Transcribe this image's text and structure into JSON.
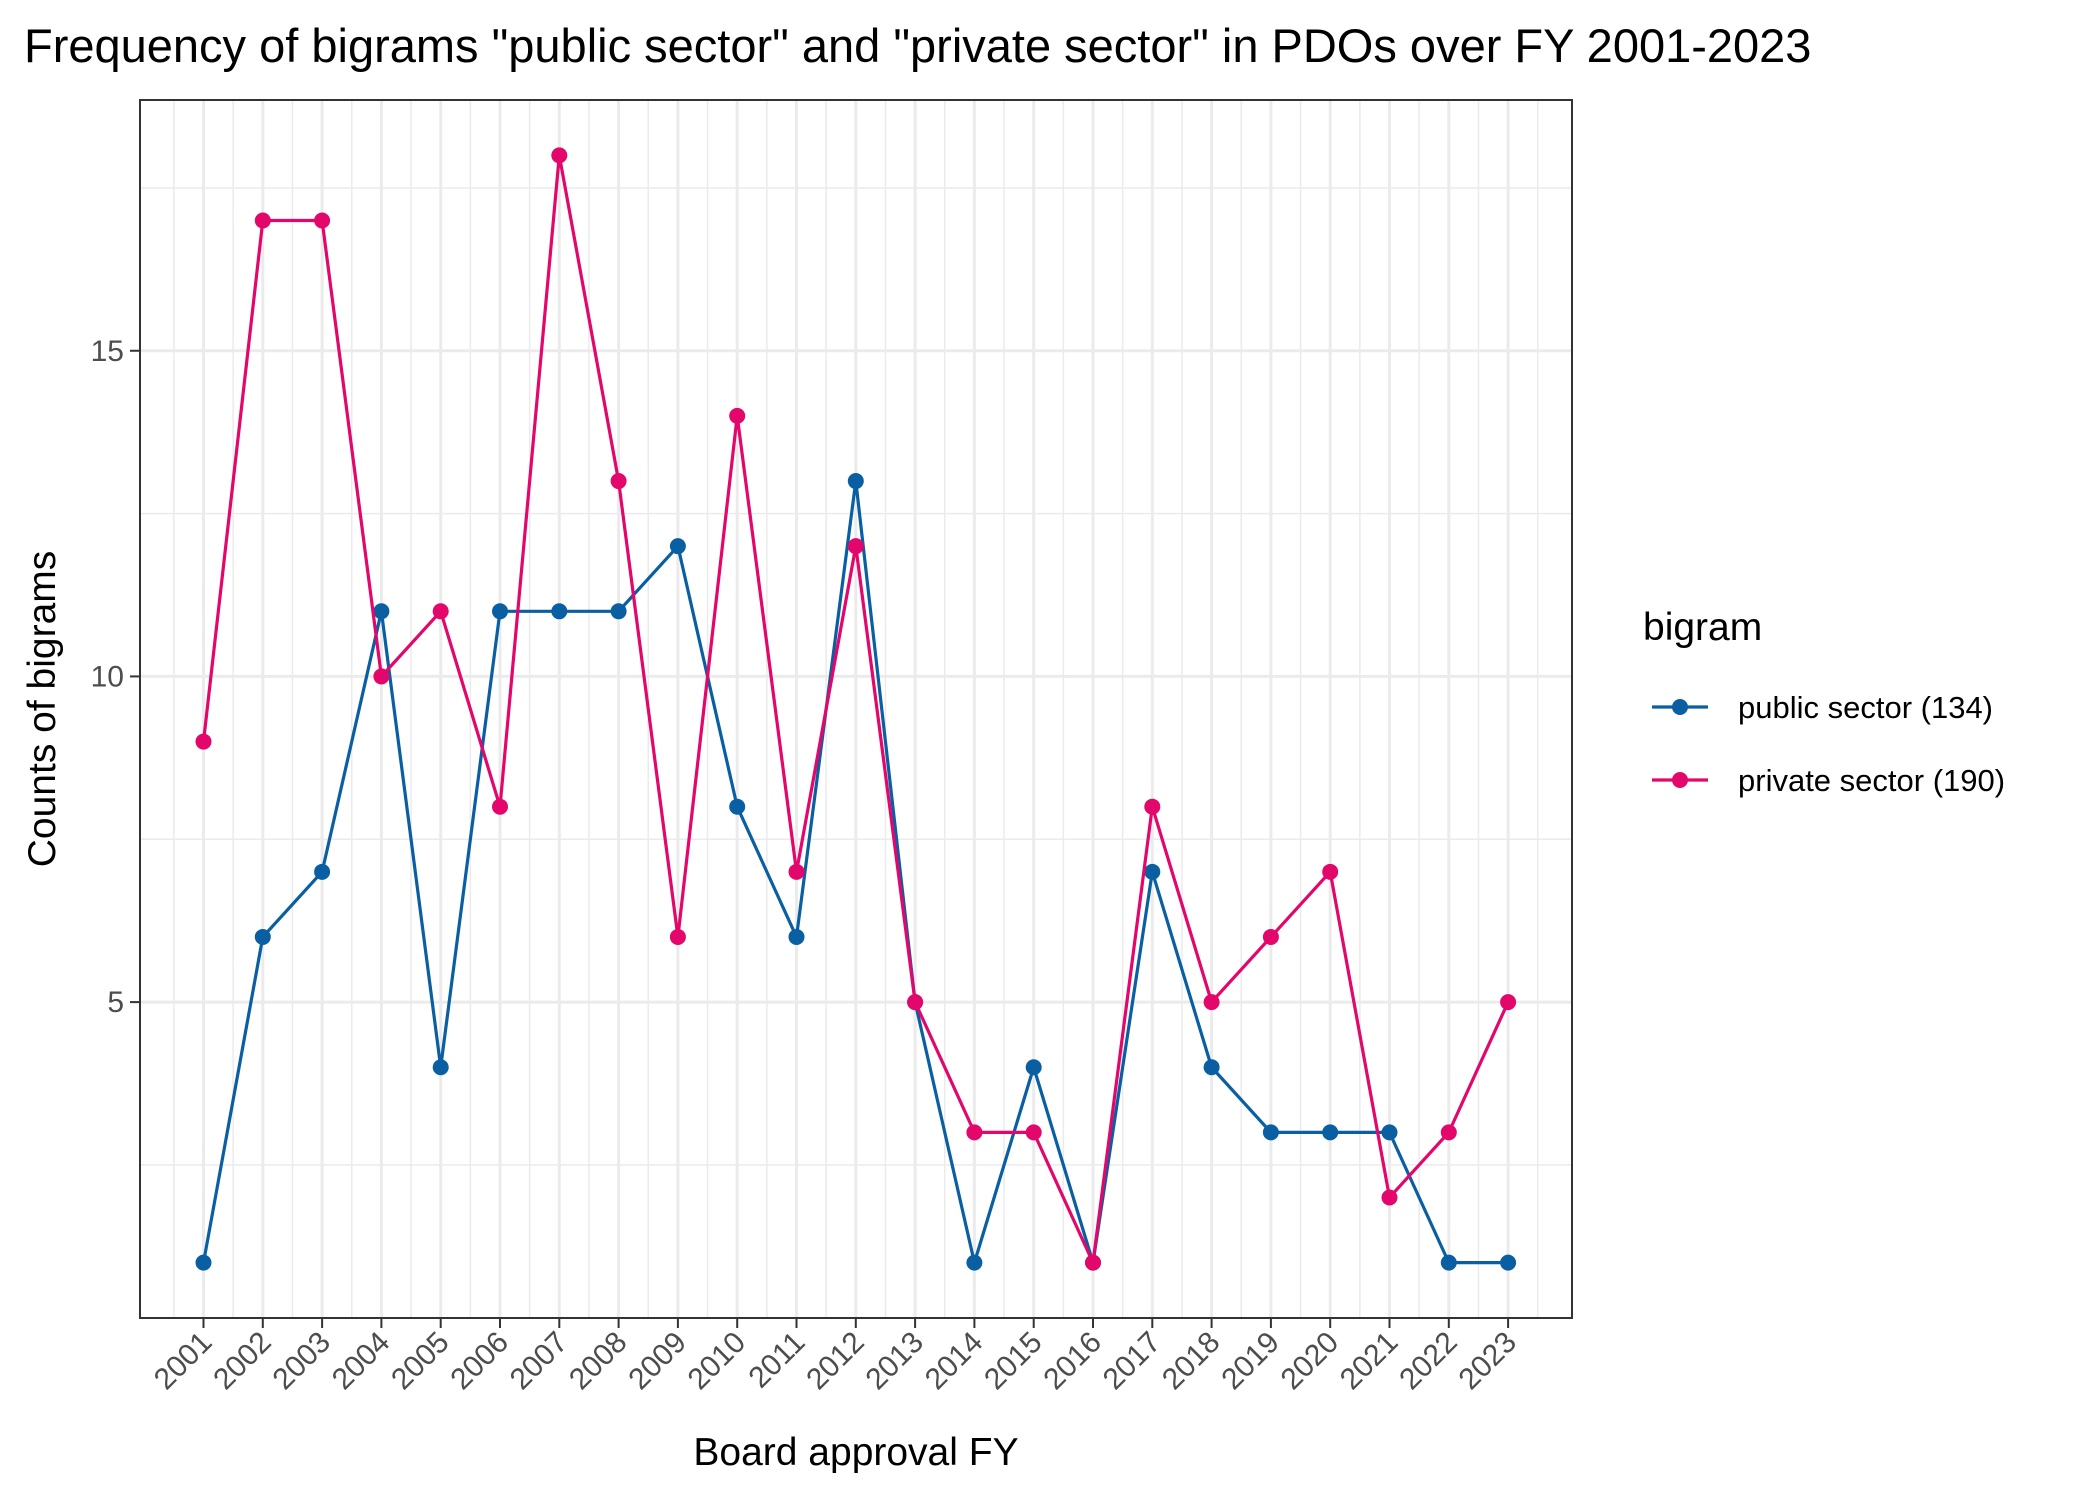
{
  "chart_data": {
    "type": "line",
    "title": "Frequency of bigrams \"public sector\" and \"private sector\" in PDOs over FY 2001-2023",
    "xlabel": "Board approval FY",
    "ylabel": "Counts of bigrams",
    "x": [
      "2001",
      "2002",
      "2003",
      "2004",
      "2005",
      "2006",
      "2007",
      "2008",
      "2009",
      "2010",
      "2011",
      "2012",
      "2013",
      "2014",
      "2015",
      "2016",
      "2017",
      "2018",
      "2019",
      "2020",
      "2021",
      "2022",
      "2023"
    ],
    "y_ticks": [
      5,
      10,
      15
    ],
    "ylim": [
      0.15,
      18.85
    ],
    "grid": true,
    "legend_position": "right",
    "legend_title": "bigram",
    "series": [
      {
        "name": "public sector (134)",
        "color": "#0a5fa3",
        "values": [
          1,
          6,
          7,
          11,
          4,
          11,
          11,
          11,
          12,
          8,
          6,
          13,
          5,
          1,
          4,
          1,
          7,
          4,
          3,
          3,
          3,
          1,
          1
        ]
      },
      {
        "name": "private sector (190)",
        "color": "#e3066b",
        "values": [
          9,
          17,
          17,
          10,
          11,
          8,
          18,
          13,
          6,
          14,
          7,
          12,
          5,
          3,
          3,
          1,
          8,
          5,
          6,
          7,
          2,
          3,
          5
        ]
      }
    ]
  }
}
